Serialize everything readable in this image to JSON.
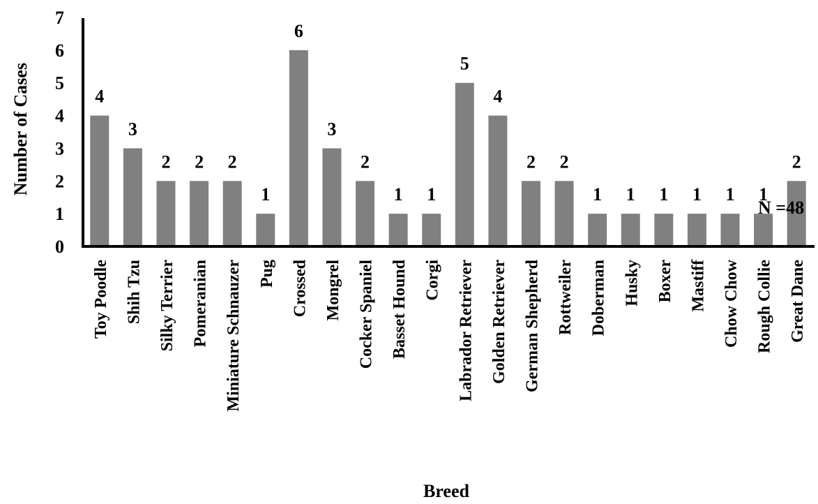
{
  "chart_data": {
    "type": "bar",
    "title": "",
    "xlabel": "Breed",
    "ylabel": "Number of Cases",
    "ylim": [
      0,
      7
    ],
    "yticks": [
      "0",
      "1",
      "2",
      "3",
      "4",
      "5",
      "6",
      "7"
    ],
    "categories": [
      "Toy Poodle",
      "Shih Tzu",
      "Silky Terrier",
      "Pomeranian",
      "Miniature Schnauzer",
      "Pug",
      "Crossed",
      "Mongrel",
      "Cocker Spaniel",
      "Basset Hound",
      "Corgi",
      "Labrador Retriever",
      "Golden Retriever",
      "German Shepherd",
      "Rottweiler",
      "Doberman",
      "Husky",
      "Boxer",
      "Mastiff",
      "Chow Chow",
      "Rough Collie",
      "Great Dane"
    ],
    "values": [
      4,
      3,
      2,
      2,
      2,
      1,
      6,
      3,
      2,
      1,
      1,
      5,
      4,
      2,
      2,
      1,
      1,
      1,
      1,
      1,
      1,
      2
    ],
    "data_labels": [
      "4",
      "3",
      "2",
      "2",
      "2",
      "1",
      "6",
      "3",
      "2",
      "1",
      "1",
      "5",
      "4",
      "2",
      "2",
      "1",
      "1",
      "1",
      "1",
      "1",
      "1",
      "2"
    ],
    "annotation": "N =48",
    "grid": false,
    "legend": "none",
    "bar_color": "#808080"
  }
}
